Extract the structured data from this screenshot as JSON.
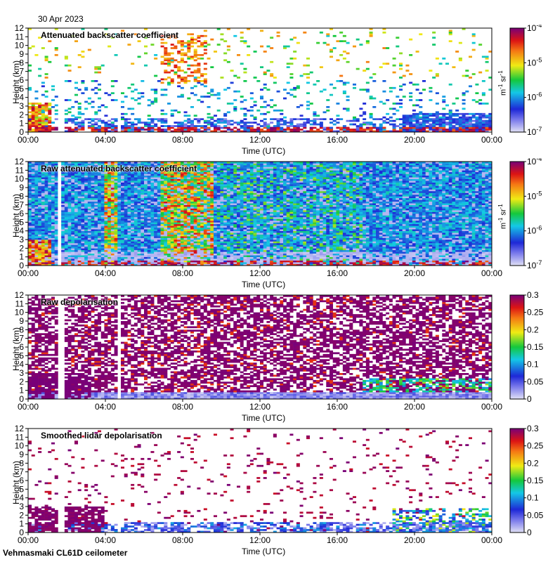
{
  "header": {
    "date": "30 Apr 2023"
  },
  "footer": {
    "instrument": "Vehmasmaki CL61D ceilometer"
  },
  "chart_data": [
    {
      "type": "heatmap",
      "title": "Attenuated backscatter coefficient",
      "xlabel": "Time (UTC)",
      "ylabel": "Height (km)",
      "xticks": [
        "00:00",
        "04:00",
        "08:00",
        "12:00",
        "16:00",
        "20:00",
        "00:00"
      ],
      "yticks": [
        0,
        1,
        2,
        3,
        4,
        5,
        6,
        7,
        8,
        9,
        10,
        11,
        12
      ],
      "ylim": [
        0,
        12
      ],
      "colorbar": {
        "scale": "log",
        "ticks": [
          "10-7",
          "10-6",
          "10-5",
          "10-4"
        ],
        "unit": "m-1 sr-1"
      }
    },
    {
      "type": "heatmap",
      "title": "Raw attenuated backscatter coefficient",
      "xlabel": "Time (UTC)",
      "ylabel": "Height (km)",
      "xticks": [
        "00:00",
        "04:00",
        "08:00",
        "12:00",
        "16:00",
        "20:00",
        "00:00"
      ],
      "yticks": [
        0,
        1,
        2,
        3,
        4,
        5,
        6,
        7,
        8,
        9,
        10,
        11,
        12
      ],
      "ylim": [
        0,
        12
      ],
      "colorbar": {
        "scale": "log",
        "ticks": [
          "10-7",
          "10-6",
          "10-5",
          "10-4"
        ],
        "unit": "m-1 sr-1"
      }
    },
    {
      "type": "heatmap",
      "title": "Raw depolarisation",
      "xlabel": "Time (UTC)",
      "ylabel": "Height (km)",
      "xticks": [
        "00:00",
        "04:00",
        "08:00",
        "12:00",
        "16:00",
        "20:00",
        "00:00"
      ],
      "yticks": [
        0,
        1,
        2,
        3,
        4,
        5,
        6,
        7,
        8,
        9,
        10,
        11,
        12
      ],
      "ylim": [
        0,
        12
      ],
      "colorbar": {
        "scale": "linear",
        "ticks": [
          "0",
          "0.05",
          "0.1",
          "0.15",
          "0.2",
          "0.25",
          "0.3"
        ],
        "unit": ""
      }
    },
    {
      "type": "heatmap",
      "title": "Smoothed lidar depolarisation",
      "xlabel": "Time (UTC)",
      "ylabel": "Height (km)",
      "xticks": [
        "00:00",
        "04:00",
        "08:00",
        "12:00",
        "16:00",
        "20:00",
        "00:00"
      ],
      "yticks": [
        0,
        1,
        2,
        3,
        4,
        5,
        6,
        7,
        8,
        9,
        10,
        11,
        12
      ],
      "ylim": [
        0,
        12
      ],
      "colorbar": {
        "scale": "linear",
        "ticks": [
          "0",
          "0.05",
          "0.1",
          "0.15",
          "0.2",
          "0.25",
          "0.3"
        ],
        "unit": ""
      }
    }
  ]
}
